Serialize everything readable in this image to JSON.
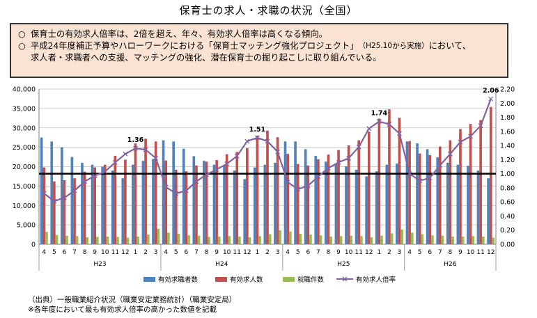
{
  "title": "保育士の求人・求職の状況（全国）",
  "summary": {
    "bullet_mark": "○",
    "line1": "保育士の有効求人倍率は、2倍を超え、年々、有効求人倍率は高くなる傾向。",
    "line2a_pre": "平成24年度補正予算やハローワークにおける「保育士マッチング強化プロジェクト」",
    "line2a_small": "（H25.10から実施）",
    "line2a_post": "において、",
    "line2b": "求人者・求職者への支援、マッチングの強化、潜在保育士の掘り起こしに取り組んでいる。"
  },
  "footnotes": {
    "source": "（出典）一般職業紹介状況（職業安定業務統計）（職業安定局）",
    "note": "※各年度において最も有効求人倍率の高かった数値を記載"
  },
  "colors": {
    "seekers": "#4f81bd",
    "openings": "#c0504d",
    "placements": "#9bbb59",
    "ratio": "#8064a2",
    "box_bg": "#fbe3d4"
  },
  "chart_data": {
    "type": "bar",
    "categories": [
      "4",
      "5",
      "6",
      "7",
      "8",
      "9",
      "10",
      "11",
      "12",
      "1",
      "2",
      "3",
      "4",
      "5",
      "6",
      "7",
      "8",
      "9",
      "10",
      "11",
      "12",
      "1",
      "2",
      "3",
      "4",
      "5",
      "6",
      "7",
      "8",
      "9",
      "10",
      "11",
      "12",
      "1",
      "2",
      "3",
      "4",
      "5",
      "6",
      "7",
      "8",
      "9",
      "10",
      "11",
      "12"
    ],
    "year_groups": [
      {
        "label": "H23",
        "start": 0,
        "count": 12
      },
      {
        "label": "H24",
        "start": 12,
        "count": 12
      },
      {
        "label": "H25",
        "start": 24,
        "count": 12
      },
      {
        "label": "H26",
        "start": 36,
        "count": 9
      }
    ],
    "series": [
      {
        "name": "有効求職者数",
        "kind": "bar",
        "axis": "left",
        "values": [
          27500,
          26500,
          25000,
          22500,
          21000,
          20500,
          20000,
          19000,
          17000,
          20500,
          21500,
          22000,
          26800,
          26500,
          24600,
          22700,
          21500,
          20500,
          20200,
          19000,
          16800,
          19800,
          20500,
          21000,
          26500,
          26500,
          24500,
          22800,
          21300,
          20800,
          20100,
          19200,
          17500,
          18800,
          20500,
          20800,
          26500,
          26000,
          24500,
          22400,
          21000,
          20500,
          20200,
          19000,
          17000
        ]
      },
      {
        "name": "有効求人数",
        "kind": "bar",
        "axis": "left",
        "values": [
          19800,
          16200,
          16500,
          17000,
          18700,
          19800,
          20500,
          22800,
          21800,
          26000,
          27200,
          26500,
          21600,
          19200,
          18800,
          20300,
          21300,
          21700,
          23200,
          23800,
          24800,
          28000,
          29300,
          27600,
          23300,
          20700,
          20300,
          21900,
          23100,
          24300,
          25500,
          26800,
          29000,
          32400,
          34800,
          32600,
          26600,
          23400,
          23000,
          25200,
          26800,
          29700,
          31000,
          32000,
          35400
        ]
      },
      {
        "name": "就職件数",
        "kind": "bar",
        "axis": "left",
        "values": [
          3200,
          2400,
          2200,
          2100,
          1800,
          1900,
          2000,
          1900,
          1700,
          2000,
          2500,
          4000,
          3000,
          2700,
          2300,
          2200,
          1900,
          2000,
          2100,
          2000,
          1800,
          2100,
          2600,
          3600,
          3300,
          2700,
          2500,
          2300,
          2000,
          2100,
          2200,
          2100,
          1800,
          2200,
          2800,
          3800,
          3000,
          2600,
          2300,
          2200,
          2000,
          2000,
          2100,
          2000,
          1700
        ]
      },
      {
        "name": "有効求人倍率",
        "kind": "line",
        "axis": "right",
        "values": [
          0.72,
          0.61,
          0.66,
          0.76,
          0.89,
          0.97,
          1.03,
          1.16,
          1.28,
          1.36,
          1.34,
          1.22,
          0.81,
          0.72,
          0.76,
          0.89,
          0.99,
          1.06,
          1.14,
          1.25,
          1.46,
          1.51,
          1.46,
          1.31,
          0.88,
          0.78,
          0.83,
          0.96,
          1.08,
          1.16,
          1.22,
          1.38,
          1.64,
          1.74,
          1.7,
          1.57,
          1.0,
          0.9,
          0.94,
          1.12,
          1.28,
          1.45,
          1.53,
          1.68,
          2.06
        ]
      }
    ],
    "y_left": {
      "min": 0,
      "max": 40000,
      "step": 5000
    },
    "y_right": {
      "min": 0,
      "max": 2.2,
      "step": 0.2
    },
    "reference_line": 1.0,
    "annotations": [
      {
        "index": 9,
        "text": "1.36"
      },
      {
        "index": 21,
        "text": "1.51"
      },
      {
        "index": 33,
        "text": "1.74"
      },
      {
        "index": 44,
        "text": "2.06"
      }
    ],
    "legend_position": "bottom",
    "grid": true
  }
}
